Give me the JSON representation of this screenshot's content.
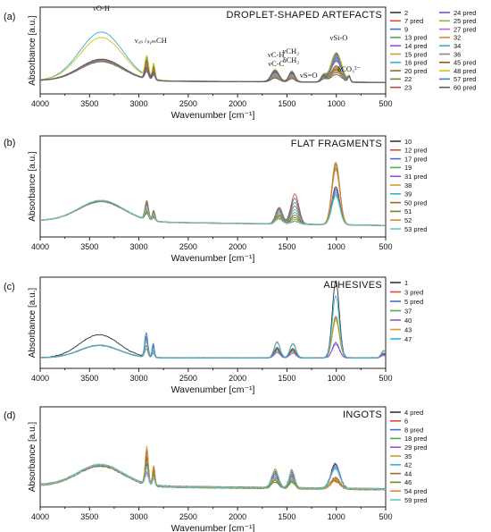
{
  "chart_data": [
    {
      "type": "line",
      "panel_label": "(a)",
      "title": "DROPLET-SHAPED ARTEFACTS",
      "xlabel": "Wavenumber [cm⁻¹]",
      "ylabel": "Absorbance [a.u.]",
      "xlim": [
        4000,
        500
      ],
      "x_ticks": [
        "4000",
        "3500",
        "3000",
        "2500",
        "2000",
        "1500",
        "1000",
        "500"
      ],
      "legend_columns": 2,
      "series": [
        {
          "name": "2",
          "color": "#333333"
        },
        {
          "name": "7 pred",
          "color": "#e8442a"
        },
        {
          "name": "9",
          "color": "#3f6fd1"
        },
        {
          "name": "13 pred",
          "color": "#4caf50"
        },
        {
          "name": "14 pred",
          "color": "#9c4fd6"
        },
        {
          "name": "15 pred",
          "color": "#c9a227"
        },
        {
          "name": "16 pred",
          "color": "#2db6e0"
        },
        {
          "name": "20 pred",
          "color": "#9b6a2f"
        },
        {
          "name": "22",
          "color": "#6b8e23"
        },
        {
          "name": "23",
          "color": "#c04848"
        },
        {
          "name": "24 pred",
          "color": "#5b5fd6"
        },
        {
          "name": "25 pred",
          "color": "#7cbf3a"
        },
        {
          "name": "27 pred",
          "color": "#b36ad9"
        },
        {
          "name": "32",
          "color": "#e08a2e"
        },
        {
          "name": "34",
          "color": "#3ab0c8"
        },
        {
          "name": "36",
          "color": "#8a8a8a"
        },
        {
          "name": "45 pred",
          "color": "#a0522d"
        },
        {
          "name": "48 pred",
          "color": "#d4c21e"
        },
        {
          "name": "57 pred",
          "color": "#4a78c8"
        },
        {
          "name": "60 pred",
          "color": "#5e5e5e"
        }
      ],
      "annotations": [
        "νO-H",
        "νₐₛ /ₛᵧₘCH",
        "νC-H",
        "νC-C",
        "νCH₂",
        "δCH₂",
        "νS=O",
        "νSi-O",
        "δCO₃²⁻"
      ]
    },
    {
      "type": "line",
      "panel_label": "(b)",
      "title": "FLAT FRAGMENTS",
      "xlabel": "Wavenumber [cm⁻¹]",
      "ylabel": "Absorbance [a.u.]",
      "xlim": [
        4000,
        500
      ],
      "x_ticks": [
        "4000",
        "3500",
        "3000",
        "2500",
        "2000",
        "1500",
        "1000",
        "500"
      ],
      "legend_columns": 1,
      "series": [
        {
          "name": "10",
          "color": "#333333"
        },
        {
          "name": "12 pred",
          "color": "#e8442a"
        },
        {
          "name": "17 pred",
          "color": "#3f6fd1"
        },
        {
          "name": "19",
          "color": "#4caf50"
        },
        {
          "name": "31 pred",
          "color": "#9c4fd6"
        },
        {
          "name": "38",
          "color": "#c9a227"
        },
        {
          "name": "39",
          "color": "#2db6e0"
        },
        {
          "name": "50 pred",
          "color": "#9b6a2f"
        },
        {
          "name": "51",
          "color": "#6b8e23"
        },
        {
          "name": "52",
          "color": "#e08a2e"
        },
        {
          "name": "53 pred",
          "color": "#5bc8d6"
        }
      ]
    },
    {
      "type": "line",
      "panel_label": "(c)",
      "title": "ADHESIVES",
      "xlabel": "Wavenumber [cm⁻¹]",
      "ylabel": "Absorbance [a.u.]",
      "xlim": [
        4000,
        500
      ],
      "x_ticks": [
        "4000",
        "3500",
        "3000",
        "2500",
        "2000",
        "1500",
        "1000",
        "500"
      ],
      "legend_columns": 1,
      "series": [
        {
          "name": "1",
          "color": "#333333"
        },
        {
          "name": "3 pred",
          "color": "#e8442a"
        },
        {
          "name": "5 pred",
          "color": "#3f6fd1"
        },
        {
          "name": "37",
          "color": "#4caf50"
        },
        {
          "name": "40",
          "color": "#9c4fd6"
        },
        {
          "name": "43",
          "color": "#c9a227"
        },
        {
          "name": "47",
          "color": "#2db6e0"
        }
      ]
    },
    {
      "type": "line",
      "panel_label": "(d)",
      "title": "INGOTS",
      "xlabel": "Wavenumber [cm⁻¹]",
      "ylabel": "Absorbance [a.u.]",
      "xlim": [
        4000,
        500
      ],
      "x_ticks": [
        "4000",
        "3500",
        "3000",
        "2500",
        "2000",
        "1500",
        "1000",
        "500"
      ],
      "legend_columns": 1,
      "series": [
        {
          "name": "4 pred",
          "color": "#333333"
        },
        {
          "name": "6",
          "color": "#e8442a"
        },
        {
          "name": "8 pred",
          "color": "#3f6fd1"
        },
        {
          "name": "18 pred",
          "color": "#4caf50"
        },
        {
          "name": "29 pred",
          "color": "#9c4fd6"
        },
        {
          "name": "35",
          "color": "#c9a227"
        },
        {
          "name": "42",
          "color": "#2db6e0"
        },
        {
          "name": "44",
          "color": "#9b6a2f"
        },
        {
          "name": "46",
          "color": "#6b8e23"
        },
        {
          "name": "54 pred",
          "color": "#e08a2e"
        },
        {
          "name": "59 pred",
          "color": "#5bc8d6"
        }
      ]
    }
  ]
}
